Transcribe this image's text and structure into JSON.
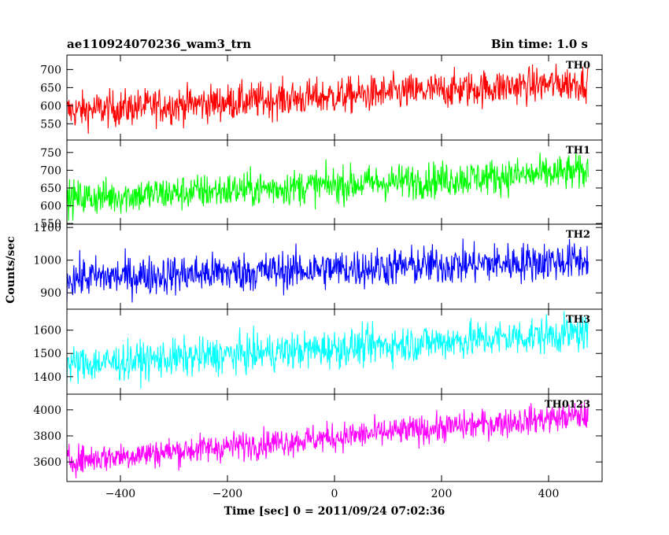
{
  "chart_data": {
    "type": "line",
    "title": "ae110924070236_wam3_trn",
    "subtitle": "Bin time: 1.0 s",
    "xlabel": "Time [sec] 0 = 2011/09/24 07:02:36",
    "ylabel": "Counts/sec",
    "xlim": [
      -500,
      500
    ],
    "x_ticks": [
      -400,
      -200,
      0,
      200,
      400
    ],
    "x_tick_labels": [
      "−400",
      "−200",
      "0",
      "200",
      "400"
    ],
    "x_start": -500,
    "x_end": 474,
    "bin_time": 1.0,
    "grid": false,
    "panels": [
      {
        "name": "TH0",
        "color": "#ff0000",
        "ylim": [
          505,
          740
        ],
        "y_ticks": [
          550,
          600,
          650,
          700
        ],
        "y_tick_labels": [
          "550",
          "600",
          "650",
          "700"
        ],
        "trend": [
          585,
          665
        ],
        "noise": 25
      },
      {
        "name": "TH1",
        "color": "#00ff00",
        "ylim": [
          548,
          785
        ],
        "y_ticks": [
          550,
          600,
          650,
          700,
          750
        ],
        "y_tick_labels": [
          "550",
          "600",
          "650",
          "700",
          "750"
        ],
        "trend": [
          620,
          695
        ],
        "noise": 25
      },
      {
        "name": "TH2",
        "color": "#0000ff",
        "ylim": [
          850,
          1110
        ],
        "y_ticks": [
          900,
          1000,
          1100
        ],
        "y_tick_labels": [
          "900",
          "1000",
          "1100"
        ],
        "trend": [
          945,
          1000
        ],
        "noise": 30
      },
      {
        "name": "TH3",
        "color": "#00ffff",
        "ylim": [
          1325,
          1690
        ],
        "y_ticks": [
          1400,
          1500,
          1600
        ],
        "y_tick_labels": [
          "1400",
          "1500",
          "1600"
        ],
        "trend": [
          1450,
          1590
        ],
        "noise": 40
      },
      {
        "name": "TH0123",
        "color": "#ff00ff",
        "ylim": [
          3450,
          4120
        ],
        "y_ticks": [
          3600,
          3800,
          4000
        ],
        "y_tick_labels": [
          "3600",
          "3800",
          "4000"
        ],
        "trend": [
          3610,
          3960
        ],
        "noise": 55
      }
    ]
  }
}
